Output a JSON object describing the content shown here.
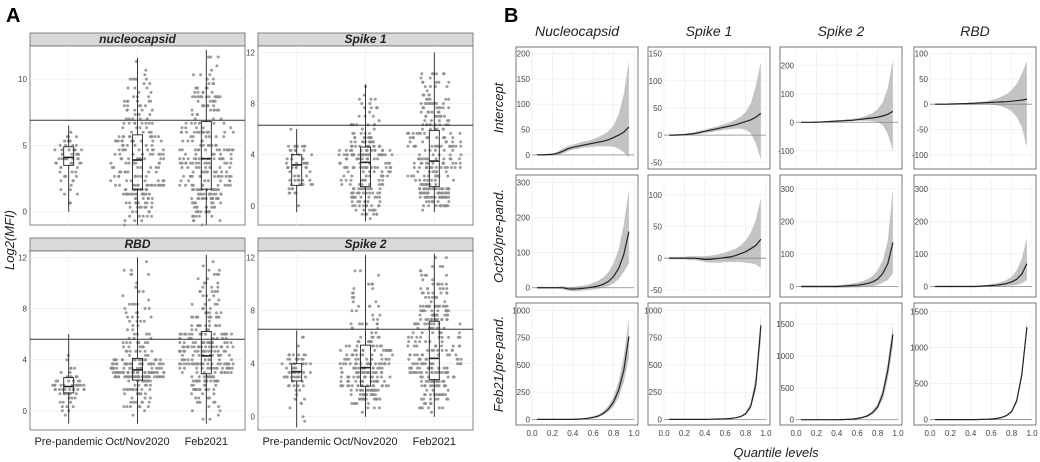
{
  "panel_a_letter": "A",
  "panel_b_letter": "B",
  "chart_data": [
    {
      "type": "scatter",
      "subtype": "beeswarm-boxplot",
      "panel": "A",
      "ylabel": "Log2(MFI)",
      "categories": [
        "Pre-pandemic",
        "Oct/Nov2020",
        "Feb2021"
      ],
      "facets": [
        {
          "name": "nucleocapsid",
          "ylim": [
            -1,
            12.5
          ],
          "yticks": [
            0,
            5,
            10
          ],
          "threshold": 6.9,
          "groups": [
            {
              "category": "Pre-pandemic",
              "min": 0,
              "q1": 3.5,
              "median": 4.1,
              "q3": 4.9,
              "max": 6.5,
              "n": 60
            },
            {
              "category": "Oct/Nov2020",
              "min": -1,
              "q1": 1.7,
              "median": 3.9,
              "q3": 5.8,
              "max": 11.6,
              "n": 230
            },
            {
              "category": "Feb2021",
              "min": -1,
              "q1": 1.7,
              "median": 4.0,
              "q3": 6.8,
              "max": 12.2,
              "n": 270
            }
          ]
        },
        {
          "name": "Spike 1",
          "ylim": [
            -1.5,
            12.5
          ],
          "yticks": [
            0,
            4,
            8,
            12
          ],
          "threshold": 6.3,
          "groups": [
            {
              "category": "Pre-pandemic",
              "min": -0.5,
              "q1": 1.6,
              "median": 3.2,
              "q3": 4.0,
              "max": 6.0,
              "n": 60
            },
            {
              "category": "Oct/Nov2020",
              "min": -1.2,
              "q1": 1.5,
              "median": 3.4,
              "q3": 4.6,
              "max": 9.5,
              "n": 230
            },
            {
              "category": "Feb2021",
              "min": -0.5,
              "q1": 1.5,
              "median": 3.5,
              "q3": 5.9,
              "max": 12.0,
              "n": 270
            }
          ]
        },
        {
          "name": "RBD",
          "ylim": [
            -1.5,
            12.5
          ],
          "yticks": [
            0,
            4,
            8,
            12
          ],
          "threshold": 5.6,
          "groups": [
            {
              "category": "Pre-pandemic",
              "min": -1,
              "q1": 1.4,
              "median": 1.9,
              "q3": 2.6,
              "max": 6.0,
              "n": 60
            },
            {
              "category": "Oct/Nov2020",
              "min": -1,
              "q1": 2.4,
              "median": 3.2,
              "q3": 4.1,
              "max": 12.0,
              "n": 230
            },
            {
              "category": "Feb2021",
              "min": -1,
              "q1": 2.9,
              "median": 4.3,
              "q3": 6.2,
              "max": 12.2,
              "n": 270
            }
          ]
        },
        {
          "name": "Spike 2",
          "ylim": [
            -1,
            12.5
          ],
          "yticks": [
            0,
            4,
            8,
            12
          ],
          "threshold": 6.6,
          "groups": [
            {
              "category": "Pre-pandemic",
              "min": -0.8,
              "q1": 2.7,
              "median": 3.4,
              "q3": 4.0,
              "max": 6.5,
              "n": 60
            },
            {
              "category": "Oct/Nov2020",
              "min": 0,
              "q1": 2.3,
              "median": 3.7,
              "q3": 5.4,
              "max": 12.2,
              "n": 230
            },
            {
              "category": "Feb2021",
              "min": 0,
              "q1": 2.8,
              "median": 4.4,
              "q3": 7.2,
              "max": 12.3,
              "n": 270
            }
          ]
        }
      ]
    },
    {
      "type": "line",
      "subtype": "quantile-regression-coefficients",
      "panel": "B",
      "xlabel": "Quantile levels",
      "xlim": [
        0,
        1.0
      ],
      "xticks": [
        0.0,
        0.2,
        0.4,
        0.6,
        0.8,
        1.0
      ],
      "x": [
        0.05,
        0.1,
        0.15,
        0.2,
        0.25,
        0.3,
        0.35,
        0.4,
        0.45,
        0.5,
        0.55,
        0.6,
        0.65,
        0.7,
        0.75,
        0.8,
        0.85,
        0.9,
        0.95
      ],
      "columns": [
        "Nucleocapsid",
        "Spike 1",
        "Spike 2",
        "RBD"
      ],
      "rows": [
        "Intercept",
        "Oct20/pre-pand.",
        "Feb21/pre-pand."
      ],
      "cells": [
        {
          "row": "Intercept",
          "column": "Nucleocapsid",
          "ylim": [
            -20,
            205
          ],
          "yticks": [
            0,
            50,
            100,
            150,
            200
          ],
          "estimate": [
            0,
            0,
            0.5,
            1,
            3,
            7,
            12,
            15,
            17,
            19,
            21,
            23,
            25,
            27,
            30,
            34,
            39,
            45,
            55
          ],
          "lower": [
            -1,
            -1,
            -1,
            -1,
            0,
            2,
            7,
            10,
            12,
            14,
            15,
            16,
            17,
            17,
            17,
            16,
            12,
            5,
            -5
          ],
          "upper": [
            1,
            1,
            2,
            3,
            6,
            12,
            17,
            20,
            23,
            26,
            28,
            31,
            35,
            40,
            47,
            58,
            80,
            120,
            185
          ]
        },
        {
          "row": "Intercept",
          "column": "Spike 1",
          "ylim": [
            -55,
            155
          ],
          "yticks": [
            -50,
            0,
            50,
            100,
            150
          ],
          "estimate": [
            0,
            0,
            0.5,
            1,
            2,
            3,
            5,
            7,
            9,
            11,
            13,
            15,
            17,
            19,
            22,
            25,
            28,
            33,
            40
          ],
          "lower": [
            -1,
            -1,
            -1,
            0,
            0,
            1,
            2,
            4,
            5,
            7,
            8,
            10,
            11,
            12,
            12,
            10,
            4,
            -15,
            -45
          ],
          "upper": [
            1,
            1,
            2,
            2,
            4,
            5,
            8,
            10,
            13,
            15,
            18,
            21,
            24,
            28,
            34,
            42,
            58,
            90,
            135
          ]
        },
        {
          "row": "Intercept",
          "column": "Spike 2",
          "ylim": [
            -150,
            250
          ],
          "yticks": [
            -100,
            0,
            100,
            200
          ],
          "estimate": [
            0,
            0,
            0,
            0.5,
            1,
            2,
            3,
            4,
            5,
            6,
            7,
            9,
            11,
            13,
            15,
            18,
            22,
            28,
            38
          ],
          "lower": [
            -1,
            -1,
            -1,
            -1,
            -1,
            0,
            1,
            1,
            2,
            3,
            4,
            5,
            5,
            5,
            4,
            0,
            -10,
            -40,
            -100
          ],
          "upper": [
            1,
            1,
            1,
            2,
            3,
            4,
            5,
            7,
            8,
            10,
            12,
            14,
            18,
            24,
            32,
            45,
            70,
            120,
            220
          ]
        },
        {
          "row": "Intercept",
          "column": "RBD",
          "ylim": [
            -120,
            105
          ],
          "yticks": [
            -100,
            -50,
            0,
            50,
            100
          ],
          "estimate": [
            0,
            0,
            0,
            0.3,
            0.5,
            1,
            1.2,
            1.5,
            2,
            2.5,
            3,
            3.5,
            4,
            4.5,
            5,
            6,
            7,
            8,
            10
          ],
          "lower": [
            -1,
            -1,
            -1,
            -1,
            -1,
            -1,
            -1,
            -1,
            -1,
            0,
            0,
            -1,
            -2,
            -4,
            -8,
            -14,
            -25,
            -45,
            -85
          ],
          "upper": [
            1,
            1,
            1,
            1,
            1,
            2,
            2,
            3,
            4,
            5,
            6,
            8,
            11,
            15,
            20,
            28,
            40,
            60,
            85
          ]
        },
        {
          "row": "Oct20/pre-pand.",
          "column": "Nucleocapsid",
          "ylim": [
            -15,
            310
          ],
          "yticks": [
            0,
            100,
            200,
            300
          ],
          "estimate": [
            0,
            0,
            0,
            0,
            0,
            0,
            -3,
            -4,
            -3,
            -2,
            0,
            2,
            5,
            10,
            18,
            32,
            55,
            95,
            160
          ],
          "lower": [
            -3,
            -3,
            -3,
            -3,
            -3,
            -4,
            -8,
            -10,
            -10,
            -8,
            -7,
            -5,
            -3,
            0,
            5,
            12,
            25,
            45,
            70
          ],
          "upper": [
            3,
            3,
            3,
            3,
            3,
            4,
            2,
            2,
            4,
            6,
            9,
            14,
            20,
            30,
            45,
            70,
            110,
            180,
            280
          ]
        },
        {
          "row": "Oct20/pre-pand.",
          "column": "Spike 1",
          "ylim": [
            -55,
            125
          ],
          "yticks": [
            -50,
            0,
            50,
            100
          ],
          "estimate": [
            0,
            0,
            0,
            0,
            0,
            0,
            -1,
            -2,
            -2,
            -1,
            0,
            1,
            2,
            4,
            7,
            10,
            15,
            20,
            30
          ],
          "lower": [
            -2,
            -2,
            -2,
            -2,
            -3,
            -3,
            -4,
            -6,
            -7,
            -7,
            -7,
            -6,
            -6,
            -6,
            -6,
            -7,
            -8,
            -10,
            -15
          ],
          "upper": [
            2,
            2,
            2,
            2,
            3,
            3,
            3,
            3,
            4,
            5,
            7,
            9,
            12,
            15,
            20,
            28,
            40,
            60,
            95
          ]
        },
        {
          "row": "Oct20/pre-pand.",
          "column": "Spike 2",
          "ylim": [
            -20,
            330
          ],
          "yticks": [
            0,
            100,
            200,
            300
          ],
          "estimate": [
            0,
            0,
            0,
            0,
            0,
            0,
            0,
            0,
            1,
            2,
            3,
            4,
            6,
            9,
            14,
            22,
            40,
            70,
            135
          ],
          "lower": [
            -3,
            -3,
            -3,
            -3,
            -3,
            -3,
            -3,
            -4,
            -4,
            -4,
            -3,
            -3,
            -2,
            -1,
            1,
            5,
            12,
            20,
            40
          ],
          "upper": [
            3,
            3,
            3,
            3,
            3,
            3,
            3,
            4,
            5,
            7,
            9,
            12,
            16,
            22,
            32,
            50,
            80,
            140,
            300
          ]
        },
        {
          "row": "Oct20/pre-pand.",
          "column": "RBD",
          "ylim": [
            -20,
            330
          ],
          "yticks": [
            0,
            100,
            200,
            300
          ],
          "estimate": [
            0,
            0,
            0,
            0,
            0,
            0,
            0,
            0,
            0,
            1,
            2,
            3,
            4,
            6,
            9,
            14,
            22,
            38,
            70
          ],
          "lower": [
            -2,
            -2,
            -2,
            -2,
            -2,
            -2,
            -2,
            -2,
            -2,
            -2,
            -1,
            -1,
            0,
            1,
            2,
            3,
            5,
            10,
            20
          ],
          "upper": [
            2,
            2,
            2,
            2,
            2,
            2,
            2,
            3,
            3,
            4,
            5,
            7,
            10,
            14,
            20,
            30,
            50,
            85,
            150
          ]
        },
        {
          "row": "Feb21/pre-pand.",
          "column": "Nucleocapsid",
          "ylim": [
            -15,
            1030
          ],
          "yticks": [
            0,
            250,
            500,
            750,
            1000
          ],
          "estimate": [
            0,
            0,
            0,
            0,
            0,
            0,
            0,
            0,
            2,
            5,
            10,
            18,
            30,
            55,
            95,
            160,
            270,
            450,
            760
          ],
          "lower": [
            -3,
            -3,
            -3,
            -3,
            -3,
            -3,
            -3,
            -3,
            -2,
            0,
            4,
            10,
            20,
            40,
            70,
            120,
            200,
            340,
            560
          ],
          "upper": [
            3,
            3,
            3,
            3,
            3,
            3,
            3,
            4,
            6,
            10,
            18,
            28,
            45,
            75,
            125,
            210,
            350,
            580,
            920
          ]
        },
        {
          "row": "Feb21/pre-pand.",
          "column": "Spike 1",
          "ylim": [
            -15,
            1030
          ],
          "yticks": [
            0,
            250,
            500,
            750,
            1000
          ],
          "estimate": [
            0,
            0,
            0,
            0,
            0,
            0,
            0,
            0,
            1,
            2,
            3,
            5,
            8,
            14,
            25,
            50,
            120,
            320,
            860
          ],
          "lower": [
            -2,
            -2,
            -2,
            -2,
            -2,
            -2,
            -2,
            -2,
            -1,
            0,
            1,
            3,
            6,
            11,
            20,
            40,
            95,
            260,
            730
          ],
          "upper": [
            2,
            2,
            2,
            2,
            2,
            2,
            2,
            2,
            3,
            4,
            5,
            7,
            11,
            18,
            32,
            65,
            150,
            400,
            950
          ]
        },
        {
          "row": "Feb21/pre-pand.",
          "column": "Spike 2",
          "ylim": [
            -20,
            1770
          ],
          "yticks": [
            0,
            500,
            1000,
            1500
          ],
          "estimate": [
            0,
            0,
            0,
            0,
            0,
            0,
            0,
            0,
            2,
            5,
            10,
            20,
            35,
            60,
            110,
            200,
            400,
            780,
            1340
          ],
          "lower": [
            -5,
            -5,
            -5,
            -5,
            -5,
            -5,
            -5,
            -5,
            -3,
            0,
            5,
            12,
            25,
            45,
            85,
            160,
            320,
            640,
            1150
          ],
          "upper": [
            5,
            5,
            5,
            5,
            5,
            5,
            5,
            6,
            8,
            12,
            18,
            30,
            48,
            80,
            140,
            250,
            480,
            900,
            1500
          ]
        },
        {
          "row": "Feb21/pre-pand.",
          "column": "RBD",
          "ylim": [
            -20,
            1560
          ],
          "yticks": [
            0,
            500,
            1000,
            1500
          ],
          "estimate": [
            0,
            0,
            0,
            0,
            0,
            0,
            0,
            0,
            0,
            2,
            4,
            8,
            15,
            28,
            55,
            110,
            260,
            620,
            1280
          ],
          "lower": [
            -5,
            -5,
            -5,
            -5,
            -5,
            -5,
            -5,
            -5,
            -5,
            -3,
            0,
            4,
            10,
            22,
            45,
            95,
            230,
            570,
            1200
          ],
          "upper": [
            5,
            5,
            5,
            5,
            5,
            5,
            5,
            5,
            5,
            7,
            9,
            13,
            20,
            35,
            65,
            125,
            290,
            670,
            1360
          ]
        }
      ]
    }
  ]
}
